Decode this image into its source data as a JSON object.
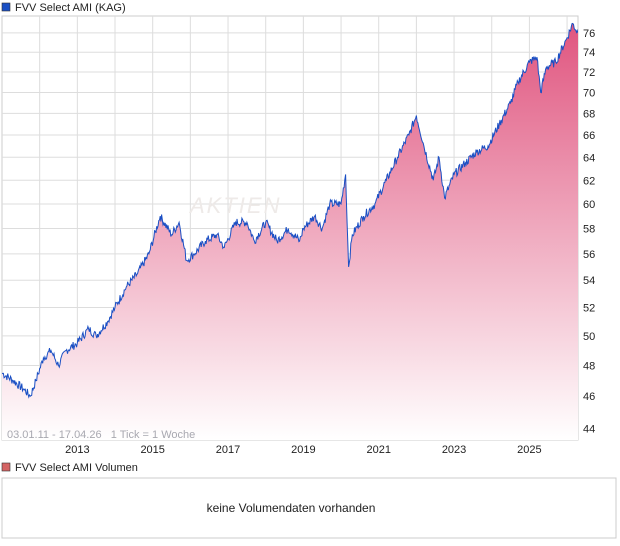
{
  "legend_main": "FVV Select AMI (KAG)",
  "legend_volume": "FVV Select AMI Volumen",
  "volume_empty_text": "keine Volumendaten vorhanden",
  "range_text": "03.01.11 - 17.04.26   1 Tick = 1 Woche",
  "watermark": "AKTIEN",
  "colors": {
    "line": "#1a4fc4",
    "fill_top": "#e0557f",
    "fill_bottom": "#ffffff",
    "volume_legend": "#d46464",
    "grid": "#dddddd"
  },
  "chart_data": {
    "type": "area",
    "title": "FVV Select AMI (KAG)",
    "xlabel": "",
    "ylabel": "",
    "x_range": [
      2011.0,
      2026.29
    ],
    "ylim": [
      43.3,
      77.8
    ],
    "y_scale": "log",
    "grid": true,
    "legend": "top-left",
    "x_ticks": [
      "2013",
      "2015",
      "2017",
      "2019",
      "2021",
      "2023",
      "2025"
    ],
    "y_ticks": [
      "44",
      "46",
      "48",
      "50",
      "52",
      "54",
      "56",
      "58",
      "60",
      "62",
      "64",
      "66",
      "68",
      "70",
      "72",
      "74",
      "76"
    ],
    "points": [
      [
        2011.0,
        47.5
      ],
      [
        2011.3,
        47
      ],
      [
        2011.6,
        46.4
      ],
      [
        2011.75,
        46
      ],
      [
        2011.9,
        47
      ],
      [
        2012.1,
        48.5
      ],
      [
        2012.3,
        49
      ],
      [
        2012.5,
        48
      ],
      [
        2012.7,
        49
      ],
      [
        2013.0,
        49.5
      ],
      [
        2013.3,
        50.5
      ],
      [
        2013.5,
        50
      ],
      [
        2013.8,
        51
      ],
      [
        2014.0,
        52
      ],
      [
        2014.3,
        53.5
      ],
      [
        2014.6,
        54.5
      ],
      [
        2014.9,
        56
      ],
      [
        2015.2,
        59
      ],
      [
        2015.5,
        57.5
      ],
      [
        2015.7,
        58.5
      ],
      [
        2015.9,
        55.5
      ],
      [
        2016.1,
        56
      ],
      [
        2016.4,
        57
      ],
      [
        2016.7,
        57.5
      ],
      [
        2016.9,
        56.5
      ],
      [
        2017.2,
        58.5
      ],
      [
        2017.5,
        58.5
      ],
      [
        2017.7,
        57
      ],
      [
        2018.0,
        58.5
      ],
      [
        2018.3,
        57
      ],
      [
        2018.6,
        58
      ],
      [
        2018.9,
        57
      ],
      [
        2019.0,
        58
      ],
      [
        2019.3,
        59
      ],
      [
        2019.5,
        58
      ],
      [
        2019.7,
        60
      ],
      [
        2020.0,
        60
      ],
      [
        2020.12,
        62.5
      ],
      [
        2020.2,
        55
      ],
      [
        2020.3,
        57.5
      ],
      [
        2020.6,
        59
      ],
      [
        2020.9,
        60
      ],
      [
        2021.2,
        62
      ],
      [
        2021.5,
        64
      ],
      [
        2021.8,
        66
      ],
      [
        2022.0,
        67.8
      ],
      [
        2022.2,
        65
      ],
      [
        2022.45,
        62
      ],
      [
        2022.6,
        64
      ],
      [
        2022.75,
        60.5
      ],
      [
        2023.0,
        62.5
      ],
      [
        2023.3,
        63.5
      ],
      [
        2023.6,
        64.5
      ],
      [
        2023.9,
        65
      ],
      [
        2024.2,
        67
      ],
      [
        2024.5,
        69
      ],
      [
        2024.7,
        71
      ],
      [
        2025.0,
        73
      ],
      [
        2025.2,
        73.5
      ],
      [
        2025.3,
        70
      ],
      [
        2025.45,
        72.5
      ],
      [
        2025.7,
        73
      ],
      [
        2026.0,
        75.5
      ],
      [
        2026.15,
        77
      ],
      [
        2026.29,
        76
      ]
    ]
  }
}
